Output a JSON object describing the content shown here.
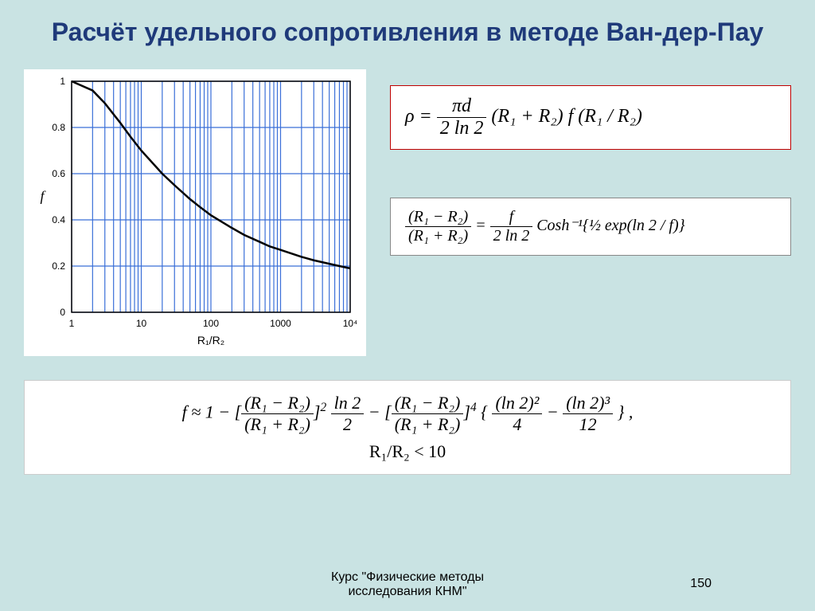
{
  "slide": {
    "background_color": "#c9e3e3",
    "title": "Расчёт удельного сопротивления в методе Ван-дер-Пау",
    "title_color": "#1f3a7a"
  },
  "chart": {
    "type": "line",
    "xscale": "log",
    "xlabel": "R₁/R₂",
    "ylabel": "f",
    "xlim": [
      1,
      10000
    ],
    "ylim": [
      0,
      1
    ],
    "xticks": [
      1,
      10,
      100,
      1000,
      10000
    ],
    "xtick_labels": [
      "1",
      "10",
      "100",
      "1000",
      "10⁴"
    ],
    "yticks": [
      0,
      0.2,
      0.4,
      0.6,
      0.8,
      1
    ],
    "line_color": "#000000",
    "line_width": 2.5,
    "grid_color": "#3a6fd8",
    "grid_width": 1.2,
    "background_color": "#ffffff",
    "label_fontsize": 14,
    "tick_fontsize": 12,
    "data": [
      {
        "x": 1,
        "y": 1.0
      },
      {
        "x": 2,
        "y": 0.96
      },
      {
        "x": 3,
        "y": 0.905
      },
      {
        "x": 5,
        "y": 0.82
      },
      {
        "x": 7,
        "y": 0.76
      },
      {
        "x": 10,
        "y": 0.7
      },
      {
        "x": 20,
        "y": 0.6
      },
      {
        "x": 30,
        "y": 0.55
      },
      {
        "x": 50,
        "y": 0.49
      },
      {
        "x": 70,
        "y": 0.455
      },
      {
        "x": 100,
        "y": 0.42
      },
      {
        "x": 200,
        "y": 0.365
      },
      {
        "x": 300,
        "y": 0.335
      },
      {
        "x": 500,
        "y": 0.305
      },
      {
        "x": 700,
        "y": 0.285
      },
      {
        "x": 1000,
        "y": 0.27
      },
      {
        "x": 2000,
        "y": 0.24
      },
      {
        "x": 3000,
        "y": 0.225
      },
      {
        "x": 5000,
        "y": 0.21
      },
      {
        "x": 7000,
        "y": 0.2
      },
      {
        "x": 10000,
        "y": 0.19
      }
    ]
  },
  "formula1": {
    "border_color": "#c00000",
    "text_prefix": "ρ = ",
    "frac_num": "πd",
    "frac_den": "2 ln 2",
    "text_suffix": "(R₁ + R₂) f (R₁ / R₂)"
  },
  "formula2": {
    "border_color": "#888888",
    "lhs_num": "(R₁ − R₂)",
    "lhs_den": "(R₁ + R₂)",
    "eq": " = ",
    "rhs_num": "f",
    "rhs_den": "2 ln 2",
    "tail": " Cosh⁻¹{½ exp(ln 2 / f)}"
  },
  "formula3": {
    "prefix": "f ≈ 1 − ",
    "t1_num": "(R₁ − R₂)",
    "t1_den": "(R₁ + R₂)",
    "t1_exp": "2",
    "t1b_num": "ln 2",
    "t1b_den": "2",
    "minus": " − ",
    "t2_num": "(R₁ − R₂)",
    "t2_den": "(R₁ + R₂)",
    "t2_exp": "4",
    "brace_open": " {",
    "t3_num": "(ln 2)²",
    "t3_den": "4",
    "t4_num": "(ln 2)³",
    "t4_den": "12",
    "brace_close": "} ,",
    "condition": "R₁/R₂ < 10"
  },
  "footer": {
    "course_line1": "Курс \"Физические методы",
    "course_line2": "исследования КНМ\"",
    "page_number": "150"
  }
}
